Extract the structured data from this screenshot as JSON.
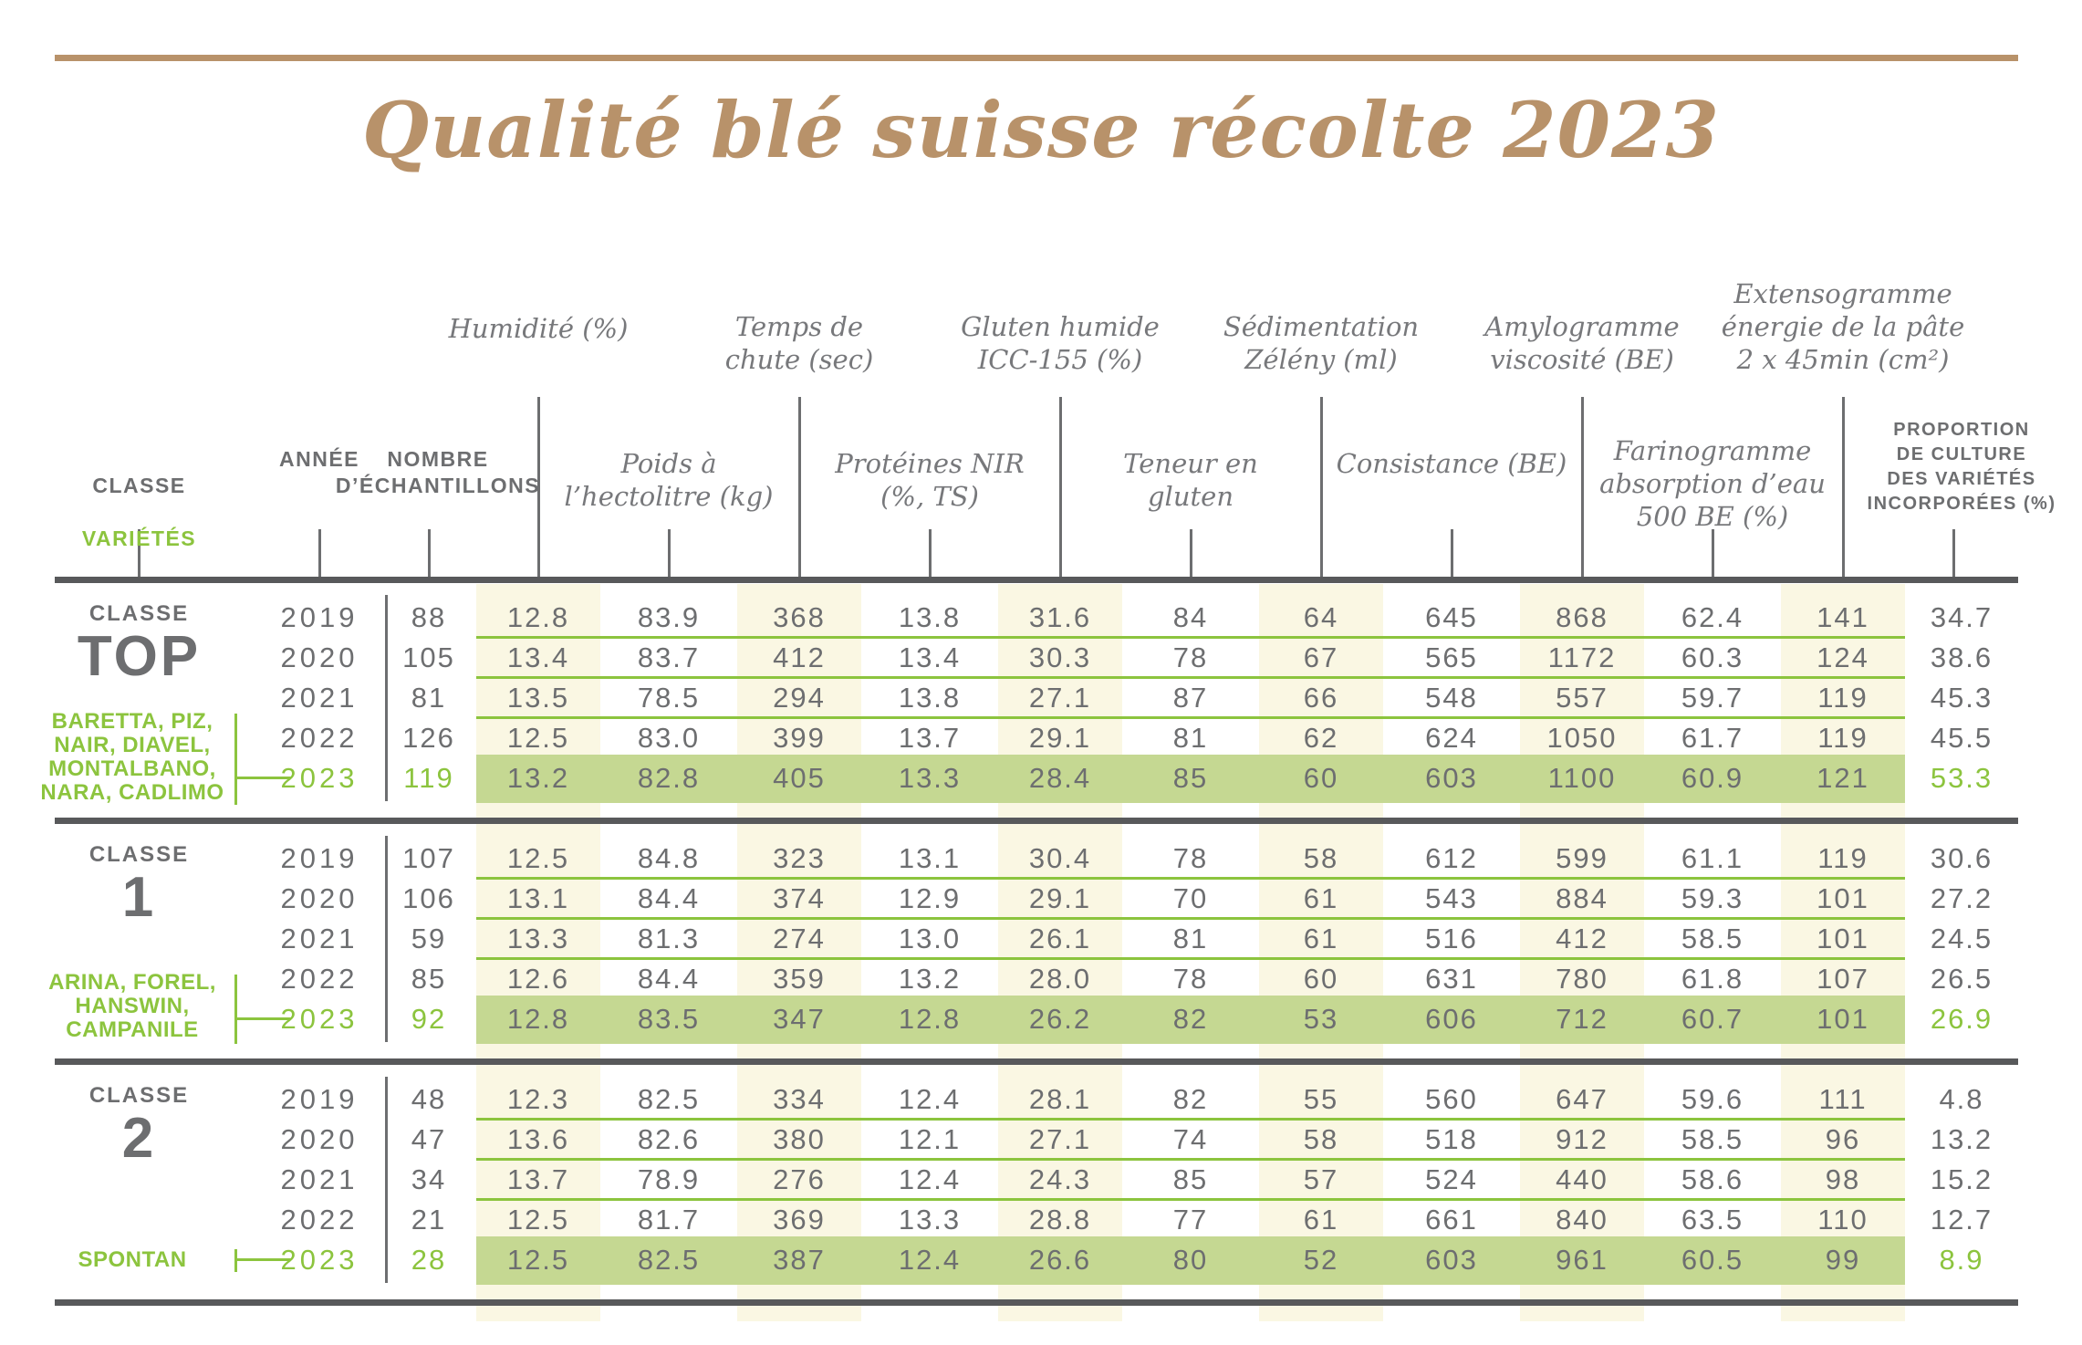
{
  "title": "Qualité blé suisse récolte 2023",
  "colors": {
    "accent_green": "#8cc43e",
    "highlight_band": "#c5d892",
    "stripe_cream": "#faf7e3",
    "title_brown": "#b8926a",
    "text_gray": "#6d6e70",
    "line_dark": "#58595b"
  },
  "header": {
    "classe": "CLASSE",
    "varietes": "VARIÉTÉS",
    "annee": "ANNÉE",
    "nombre": "NOMBRE\nD’ÉCHANTILLONS",
    "metrics_top": [
      "Humidité (%)",
      "Temps de\nchute (sec)",
      "Gluten humide\nICC-155 (%)",
      "Sédimentation\nZélény (ml)",
      "Amylogramme\nviscosité (BE)",
      "Extensogramme\nénergie de la pâte\n2 x 45min (cm²)"
    ],
    "metrics_sub": [
      "Poids à\nl’hectolitre (kg)",
      "Protéines NIR\n(%, TS)",
      "Teneur en\ngluten",
      "Consistance (BE)",
      "Farinogramme\nabsorption d’eau\n500 BE (%)"
    ],
    "proportion": "PROPORTION\nDE CULTURE\nDES VARIÉTÉS\nINCORPORÉES (%)"
  },
  "blocks": [
    {
      "classe_label": "CLASSE",
      "classe_value": "TOP",
      "varieties": "BARETTA, PIZ,\nNAIR, DIAVEL,\nMONTALBANO,\nNARA, CADLIMO",
      "rows": [
        {
          "year": "2019",
          "n": "88",
          "values": [
            "12.8",
            "83.9",
            "368",
            "13.8",
            "31.6",
            "84",
            "64",
            "645",
            "868",
            "62.4",
            "141"
          ],
          "proportion": "34.7"
        },
        {
          "year": "2020",
          "n": "105",
          "values": [
            "13.4",
            "83.7",
            "412",
            "13.4",
            "30.3",
            "78",
            "67",
            "565",
            "1172",
            "60.3",
            "124"
          ],
          "proportion": "38.6"
        },
        {
          "year": "2021",
          "n": "81",
          "values": [
            "13.5",
            "78.5",
            "294",
            "13.8",
            "27.1",
            "87",
            "66",
            "548",
            "557",
            "59.7",
            "119"
          ],
          "proportion": "45.3"
        },
        {
          "year": "2022",
          "n": "126",
          "values": [
            "12.5",
            "83.0",
            "399",
            "13.7",
            "29.1",
            "81",
            "62",
            "624",
            "1050",
            "61.7",
            "119"
          ],
          "proportion": "45.5"
        },
        {
          "year": "2023",
          "n": "119",
          "values": [
            "13.2",
            "82.8",
            "405",
            "13.3",
            "28.4",
            "85",
            "60",
            "603",
            "1100",
            "60.9",
            "121"
          ],
          "proportion": "53.3"
        }
      ]
    },
    {
      "classe_label": "CLASSE",
      "classe_value": "1",
      "varieties": "ARINA, FOREL,\nHANSWIN,\nCAMPANILE",
      "rows": [
        {
          "year": "2019",
          "n": "107",
          "values": [
            "12.5",
            "84.8",
            "323",
            "13.1",
            "30.4",
            "78",
            "58",
            "612",
            "599",
            "61.1",
            "119"
          ],
          "proportion": "30.6"
        },
        {
          "year": "2020",
          "n": "106",
          "values": [
            "13.1",
            "84.4",
            "374",
            "12.9",
            "29.1",
            "70",
            "61",
            "543",
            "884",
            "59.3",
            "101"
          ],
          "proportion": "27.2"
        },
        {
          "year": "2021",
          "n": "59",
          "values": [
            "13.3",
            "81.3",
            "274",
            "13.0",
            "26.1",
            "81",
            "61",
            "516",
            "412",
            "58.5",
            "101"
          ],
          "proportion": "24.5"
        },
        {
          "year": "2022",
          "n": "85",
          "values": [
            "12.6",
            "84.4",
            "359",
            "13.2",
            "28.0",
            "78",
            "60",
            "631",
            "780",
            "61.8",
            "107"
          ],
          "proportion": "26.5"
        },
        {
          "year": "2023",
          "n": "92",
          "values": [
            "12.8",
            "83.5",
            "347",
            "12.8",
            "26.2",
            "82",
            "53",
            "606",
            "712",
            "60.7",
            "101"
          ],
          "proportion": "26.9"
        }
      ]
    },
    {
      "classe_label": "CLASSE",
      "classe_value": "2",
      "varieties": "SPONTAN",
      "rows": [
        {
          "year": "2019",
          "n": "48",
          "values": [
            "12.3",
            "82.5",
            "334",
            "12.4",
            "28.1",
            "82",
            "55",
            "560",
            "647",
            "59.6",
            "111"
          ],
          "proportion": "4.8"
        },
        {
          "year": "2020",
          "n": "47",
          "values": [
            "13.6",
            "82.6",
            "380",
            "12.1",
            "27.1",
            "74",
            "58",
            "518",
            "912",
            "58.5",
            "96"
          ],
          "proportion": "13.2"
        },
        {
          "year": "2021",
          "n": "34",
          "values": [
            "13.7",
            "78.9",
            "276",
            "12.4",
            "24.3",
            "85",
            "57",
            "524",
            "440",
            "58.6",
            "98"
          ],
          "proportion": "15.2"
        },
        {
          "year": "2022",
          "n": "21",
          "values": [
            "12.5",
            "81.7",
            "369",
            "13.3",
            "28.8",
            "77",
            "61",
            "661",
            "840",
            "63.5",
            "110"
          ],
          "proportion": "12.7"
        },
        {
          "year": "2023",
          "n": "28",
          "values": [
            "12.5",
            "82.5",
            "387",
            "12.4",
            "26.6",
            "80",
            "52",
            "603",
            "961",
            "60.5",
            "99"
          ],
          "proportion": "8.9"
        }
      ]
    }
  ],
  "chart_data": {
    "type": "table",
    "title": "Qualité blé suisse récolte 2023",
    "columns": [
      "Classe",
      "Année",
      "Nombre d'échantillons",
      "Humidité (%)",
      "Poids à l'hectolitre (kg)",
      "Temps de chute (sec)",
      "Protéines NIR (%, TS)",
      "Gluten humide ICC-155 (%)",
      "Teneur en gluten",
      "Sédimentation Zélény (ml)",
      "Consistance (BE)",
      "Amylogramme viscosité (BE)",
      "Farinogramme absorption d'eau 500 BE (%)",
      "Extensogramme énergie de la pâte 2 x 45min (cm²)",
      "Proportion de culture des variétés incorporées (%)"
    ],
    "groups": [
      {
        "classe": "TOP",
        "varietes": [
          "BARETTA",
          "PIZ",
          "NAIR",
          "DIAVEL",
          "MONTALBANO",
          "NARA",
          "CADLIMO"
        ],
        "rows": [
          [
            2019,
            88,
            12.8,
            83.9,
            368,
            13.8,
            31.6,
            84,
            64,
            645,
            868,
            62.4,
            141,
            34.7
          ],
          [
            2020,
            105,
            13.4,
            83.7,
            412,
            13.4,
            30.3,
            78,
            67,
            565,
            1172,
            60.3,
            124,
            38.6
          ],
          [
            2021,
            81,
            13.5,
            78.5,
            294,
            13.8,
            27.1,
            87,
            66,
            548,
            557,
            59.7,
            119,
            45.3
          ],
          [
            2022,
            126,
            12.5,
            83.0,
            399,
            13.7,
            29.1,
            81,
            62,
            624,
            1050,
            61.7,
            119,
            45.5
          ],
          [
            2023,
            119,
            13.2,
            82.8,
            405,
            13.3,
            28.4,
            85,
            60,
            603,
            1100,
            60.9,
            121,
            53.3
          ]
        ]
      },
      {
        "classe": "1",
        "varietes": [
          "ARINA",
          "FOREL",
          "HANSWIN",
          "CAMPANILE"
        ],
        "rows": [
          [
            2019,
            107,
            12.5,
            84.8,
            323,
            13.1,
            30.4,
            78,
            58,
            612,
            599,
            61.1,
            119,
            30.6
          ],
          [
            2020,
            106,
            13.1,
            84.4,
            374,
            12.9,
            29.1,
            70,
            61,
            543,
            884,
            59.3,
            101,
            27.2
          ],
          [
            2021,
            59,
            13.3,
            81.3,
            274,
            13.0,
            26.1,
            81,
            61,
            516,
            412,
            58.5,
            101,
            24.5
          ],
          [
            2022,
            85,
            12.6,
            84.4,
            359,
            13.2,
            28.0,
            78,
            60,
            631,
            780,
            61.8,
            107,
            26.5
          ],
          [
            2023,
            92,
            12.8,
            83.5,
            347,
            12.8,
            26.2,
            82,
            53,
            606,
            712,
            60.7,
            101,
            26.9
          ]
        ]
      },
      {
        "classe": "2",
        "varietes": [
          "SPONTAN"
        ],
        "rows": [
          [
            2019,
            48,
            12.3,
            82.5,
            334,
            12.4,
            28.1,
            82,
            55,
            560,
            647,
            59.6,
            111,
            4.8
          ],
          [
            2020,
            47,
            13.6,
            82.6,
            380,
            12.1,
            27.1,
            74,
            58,
            518,
            912,
            58.5,
            96,
            13.2
          ],
          [
            2021,
            34,
            13.7,
            78.9,
            276,
            12.4,
            24.3,
            85,
            57,
            524,
            440,
            58.6,
            98,
            15.2
          ],
          [
            2022,
            21,
            12.5,
            81.7,
            369,
            13.3,
            28.8,
            77,
            61,
            661,
            840,
            63.5,
            110,
            12.7
          ],
          [
            2023,
            28,
            12.5,
            82.5,
            387,
            12.4,
            26.6,
            80,
            52,
            603,
            961,
            60.5,
            99,
            8.9
          ]
        ]
      }
    ],
    "highlighted_year": 2023,
    "legend_position": "none",
    "grid": "green row separators, cream column stripes on even metric columns"
  }
}
